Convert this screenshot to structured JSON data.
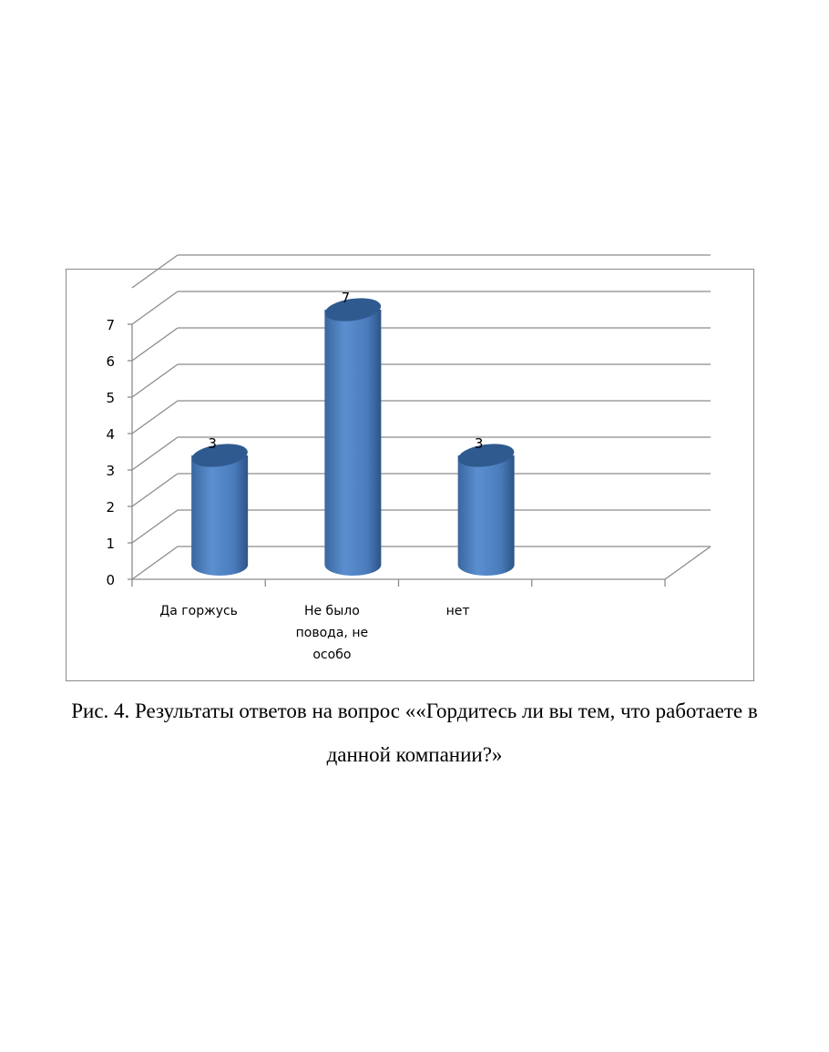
{
  "chart_data": {
    "type": "bar",
    "style": "3d-cylinder",
    "categories": [
      "Да горжусь",
      "Не было повода, не особо",
      "нет"
    ],
    "category_lines": [
      [
        "Да горжусь"
      ],
      [
        "Не было",
        "повода, не",
        "особо"
      ],
      [
        "нет"
      ]
    ],
    "values": [
      3,
      7,
      3
    ],
    "data_labels": [
      "3",
      "7",
      "3"
    ],
    "title": "",
    "xlabel": "",
    "ylabel": "",
    "ylim": [
      0,
      8
    ],
    "yticks": [
      "0",
      "1",
      "2",
      "3",
      "4",
      "5",
      "6",
      "7"
    ],
    "grid": true,
    "legend": "none",
    "colors": {
      "bar": "#4f81bd",
      "bar_dark": "#2f5a8f",
      "grid": "#8c8c8c"
    }
  },
  "caption": {
    "line1": "Рис. 4. Результаты ответов на вопрос ««Гордитесь ли вы тем, что работаете в",
    "line2": "данной компании?»"
  }
}
